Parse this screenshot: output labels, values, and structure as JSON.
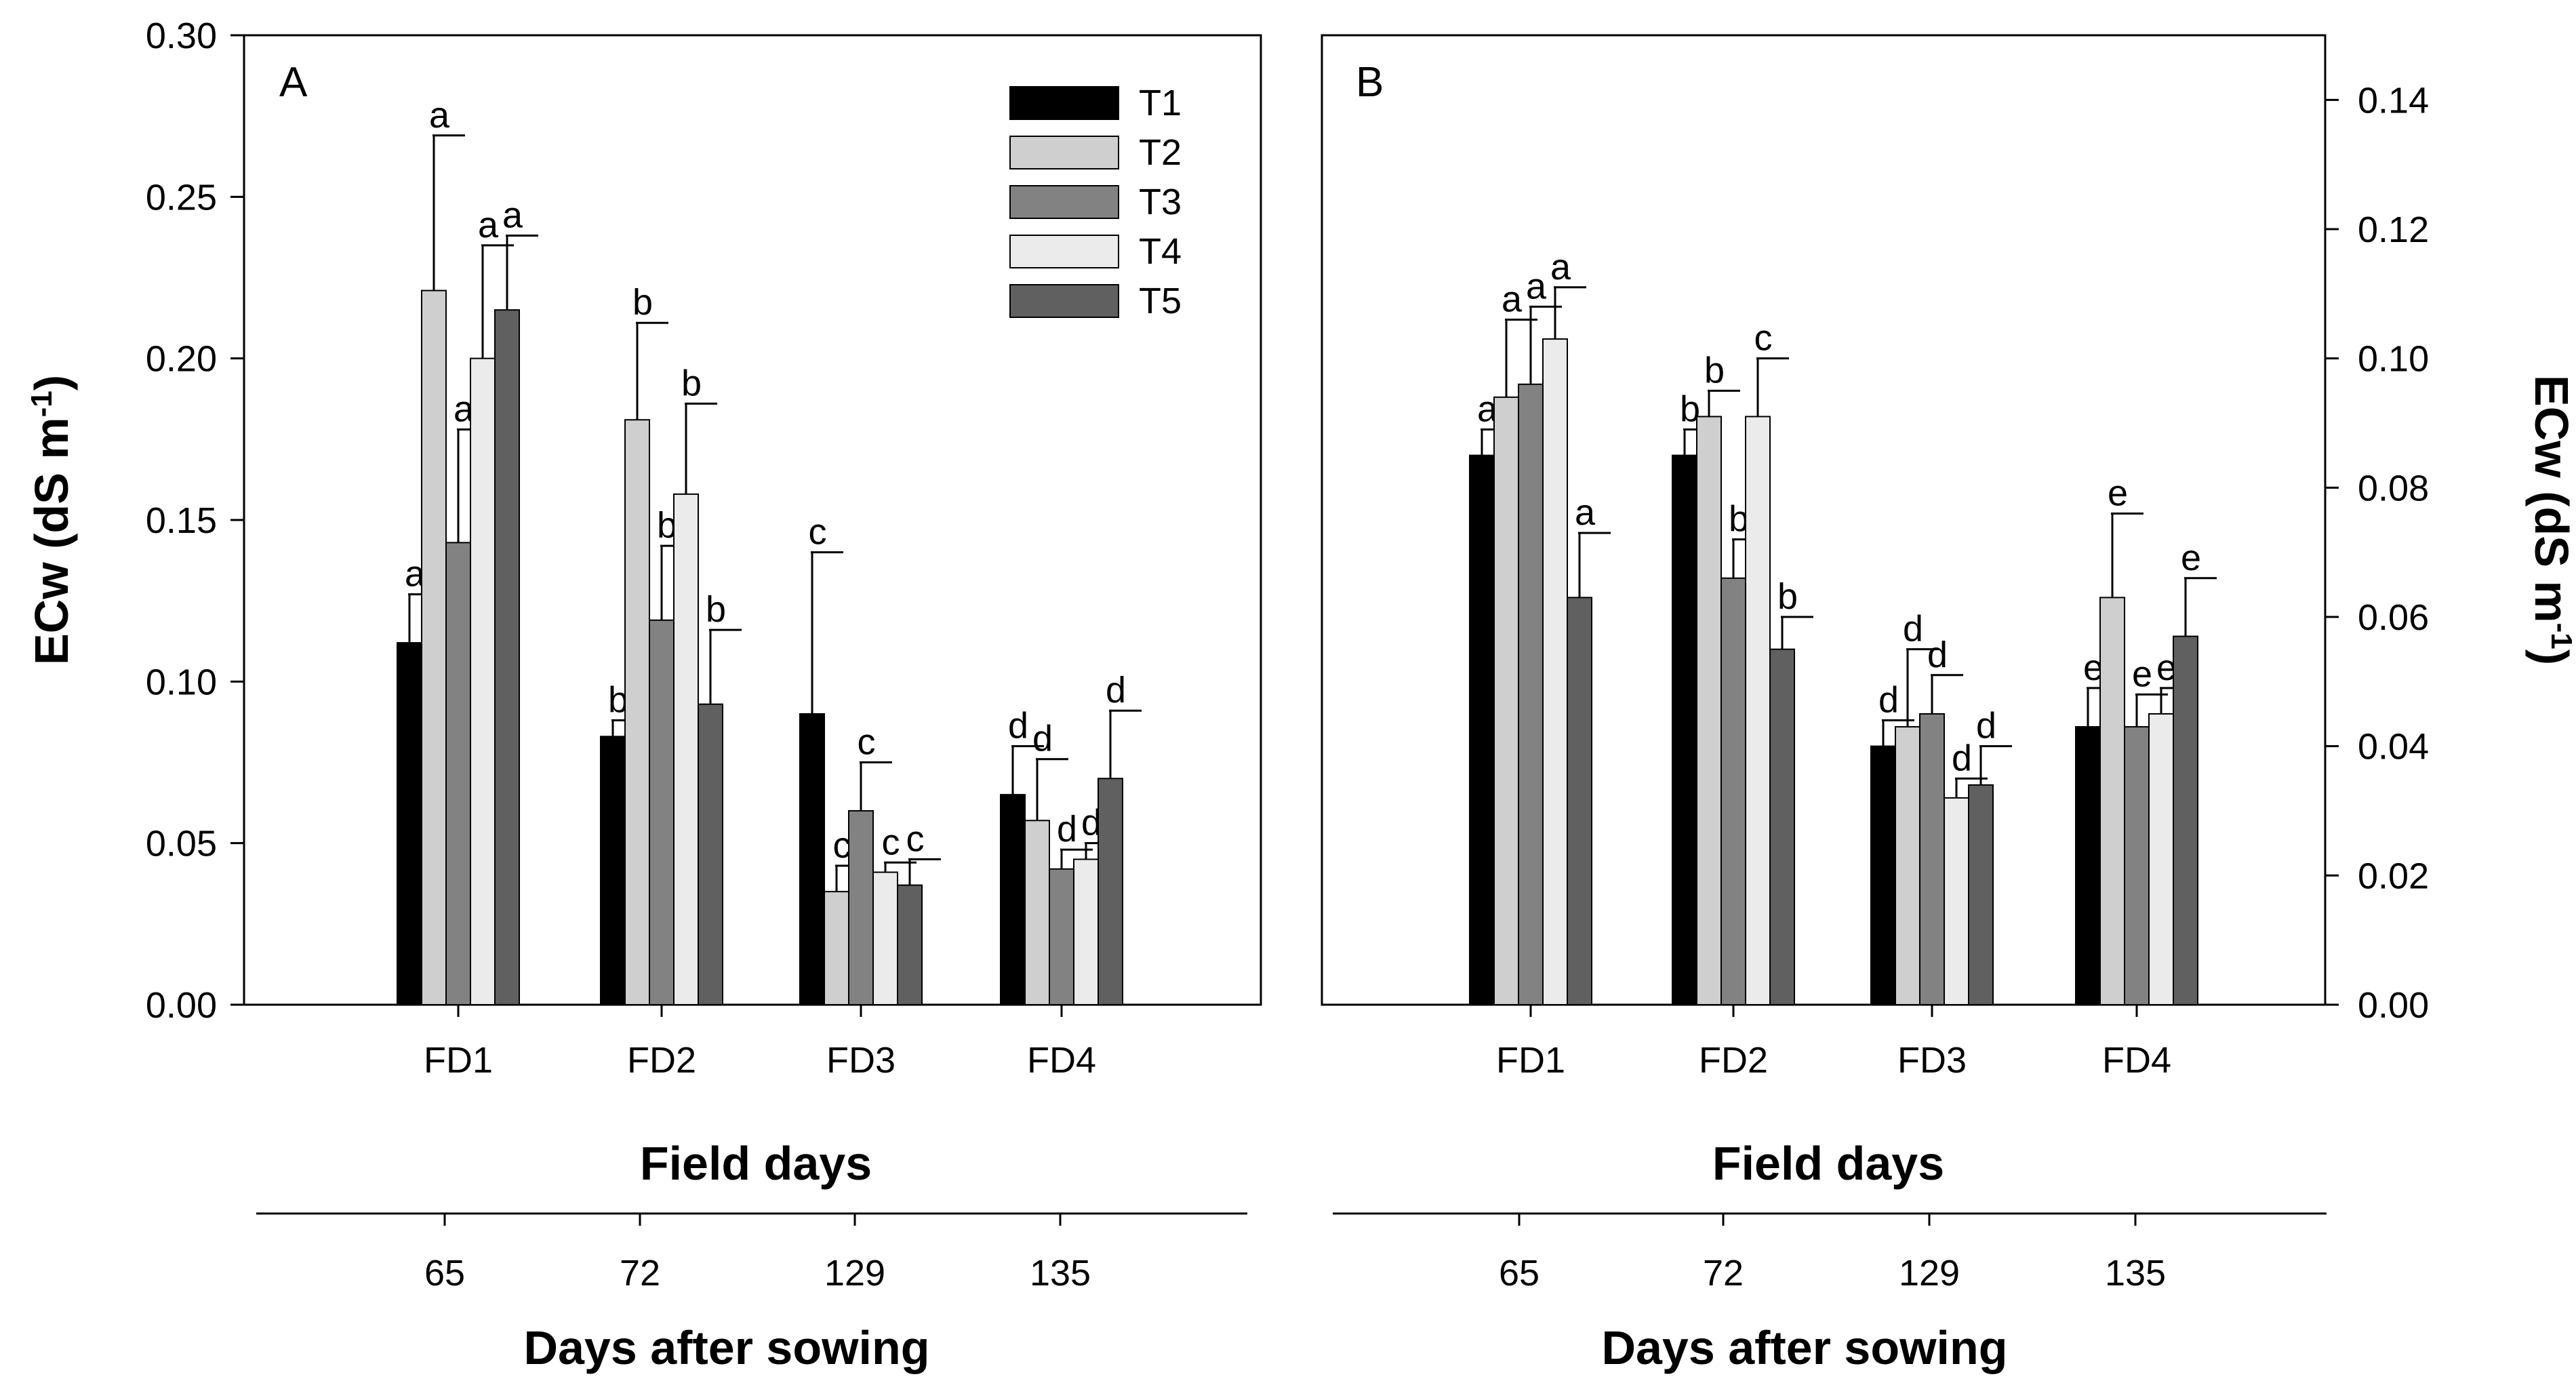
{
  "chart_data": [
    {
      "type": "bar",
      "panel": "A",
      "categories": [
        "FD1",
        "FD2",
        "FD3",
        "FD4"
      ],
      "series": [
        {
          "name": "T1",
          "color": "#000000",
          "values": [
            0.112,
            0.083,
            0.09,
            0.065
          ],
          "errors": [
            0.015,
            0.005,
            0.05,
            0.015
          ],
          "letters": [
            "a",
            "b",
            "c",
            "d"
          ]
        },
        {
          "name": "T2",
          "color": "#cfcfcf",
          "values": [
            0.221,
            0.181,
            0.035,
            0.057
          ],
          "errors": [
            0.048,
            0.03,
            0.008,
            0.019
          ],
          "letters": [
            "a",
            "b",
            "c",
            "d"
          ]
        },
        {
          "name": "T3",
          "color": "#828282",
          "values": [
            0.143,
            0.119,
            0.06,
            0.042
          ],
          "errors": [
            0.035,
            0.023,
            0.015,
            0.006
          ],
          "letters": [
            "a",
            "b",
            "c",
            "d"
          ]
        },
        {
          "name": "T4",
          "color": "#ebebeb",
          "values": [
            0.2,
            0.158,
            0.041,
            0.045
          ],
          "errors": [
            0.035,
            0.028,
            0.003,
            0.005
          ],
          "letters": [
            "a",
            "b",
            "c",
            "d"
          ]
        },
        {
          "name": "T5",
          "color": "#606060",
          "values": [
            0.215,
            0.093,
            0.037,
            0.07
          ],
          "errors": [
            0.023,
            0.023,
            0.008,
            0.021
          ],
          "letters": [
            "a",
            "b",
            "c",
            "d"
          ]
        }
      ],
      "ylim": [
        0,
        0.3
      ],
      "yticks": [
        "0.00",
        "0.05",
        "0.10",
        "0.15",
        "0.20",
        "0.25",
        "0.30"
      ],
      "xlabel": "Field days",
      "ylabel": "ECw (dS m-1)",
      "secondary_axis": {
        "label": "Days after sowing",
        "ticks": [
          "65",
          "72",
          "129",
          "135"
        ]
      },
      "legend": {
        "position": "top-right",
        "entries": [
          "T1",
          "T2",
          "T3",
          "T4",
          "T5"
        ]
      }
    },
    {
      "type": "bar",
      "panel": "B",
      "categories": [
        "FD1",
        "FD2",
        "FD3",
        "FD4"
      ],
      "series": [
        {
          "name": "T1",
          "color": "#000000",
          "values": [
            0.085,
            0.085,
            0.04,
            0.043
          ],
          "errors": [
            0.004,
            0.004,
            0.004,
            0.006
          ],
          "letters": [
            "a",
            "b",
            "d",
            "e"
          ]
        },
        {
          "name": "T2",
          "color": "#cfcfcf",
          "values": [
            0.094,
            0.091,
            0.043,
            0.063
          ],
          "errors": [
            0.012,
            0.004,
            0.012,
            0.013
          ],
          "letters": [
            "a",
            "b",
            "d",
            "e"
          ]
        },
        {
          "name": "T3",
          "color": "#828282",
          "values": [
            0.096,
            0.066,
            0.045,
            0.043
          ],
          "errors": [
            0.012,
            0.006,
            0.006,
            0.005
          ],
          "letters": [
            "a",
            "b",
            "d",
            "e"
          ]
        },
        {
          "name": "T4",
          "color": "#ebebeb",
          "values": [
            0.103,
            0.091,
            0.032,
            0.045
          ],
          "errors": [
            0.008,
            0.009,
            0.003,
            0.004
          ],
          "letters": [
            "a",
            "c",
            "d",
            "e"
          ]
        },
        {
          "name": "T5",
          "color": "#606060",
          "values": [
            0.063,
            0.055,
            0.034,
            0.057
          ],
          "errors": [
            0.01,
            0.005,
            0.006,
            0.009
          ],
          "letters": [
            "a",
            "b",
            "d",
            "e"
          ]
        }
      ],
      "ylim": [
        0,
        0.15
      ],
      "yticks": [
        "0.00",
        "0.02",
        "0.04",
        "0.06",
        "0.08",
        "0.10",
        "0.12",
        "0.14"
      ],
      "xlabel": "Field days",
      "ylabel": "ECw (dS m-1)",
      "secondary_axis": {
        "label": "Days after sowing",
        "ticks": [
          "65",
          "72",
          "129",
          "135"
        ]
      }
    }
  ]
}
